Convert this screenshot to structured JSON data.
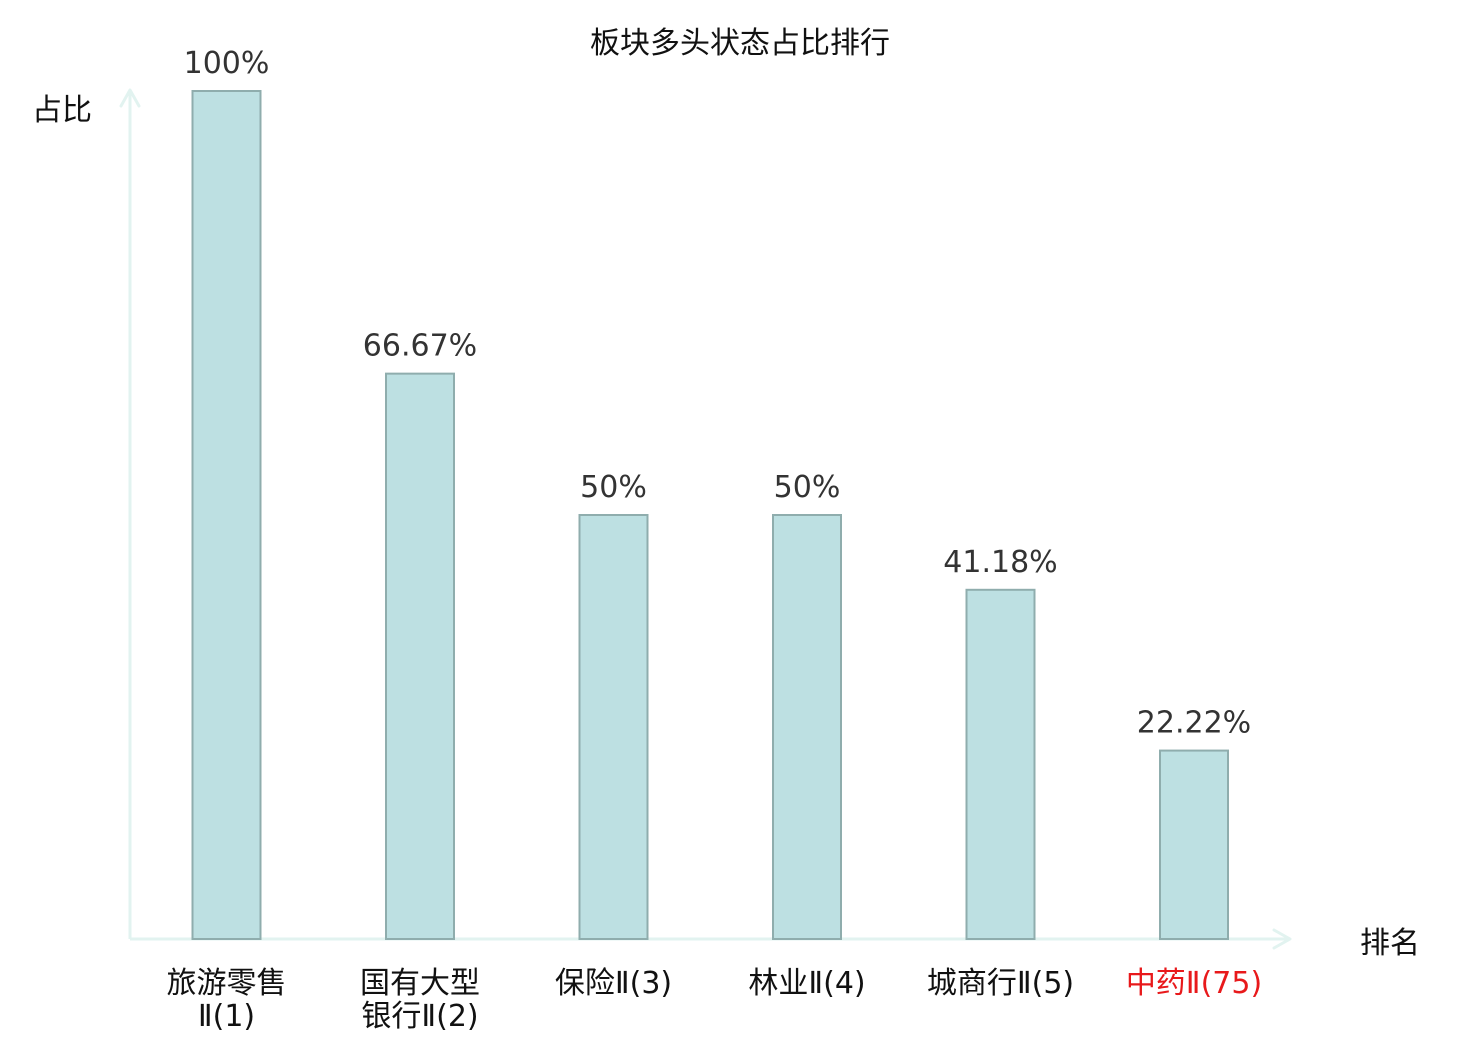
{
  "chart_data": {
    "type": "bar",
    "title": "板块多头状态占比排行",
    "ylabel": "占比",
    "xlabel": "排名",
    "ylim": [
      0,
      100
    ],
    "grid": false,
    "categories": [
      {
        "lines": [
          "旅游零售",
          "Ⅱ(1)"
        ],
        "highlight": false
      },
      {
        "lines": [
          "国有大型",
          "银行Ⅱ(2)"
        ],
        "highlight": false
      },
      {
        "lines": [
          "保险Ⅱ(3)"
        ],
        "highlight": false
      },
      {
        "lines": [
          "林业Ⅱ(4)"
        ],
        "highlight": false
      },
      {
        "lines": [
          "城商行Ⅱ(5)"
        ],
        "highlight": false
      },
      {
        "lines": [
          "中药Ⅱ(75)"
        ],
        "highlight": true
      }
    ],
    "values": [
      100,
      66.67,
      50,
      50,
      41.18,
      22.22
    ],
    "value_labels": [
      "100%",
      "66.67%",
      "50%",
      "50%",
      "41.18%",
      "22.22%"
    ]
  },
  "colors": {
    "bar_fill": "#bde0e2",
    "bar_stroke": "#8fadad",
    "axis": "#e2f3f0",
    "text": "#333333",
    "title_text": "#111111",
    "highlight_text": "#e8191b"
  }
}
